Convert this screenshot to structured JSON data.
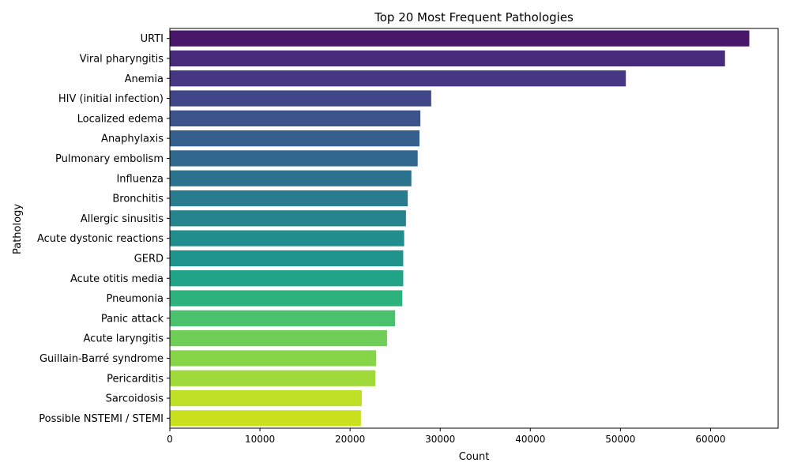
{
  "chart_data": {
    "type": "bar",
    "orientation": "horizontal",
    "title": "Top 20 Most Frequent Pathologies",
    "xlabel": "Count",
    "ylabel": "Pathology",
    "xlim": [
      0,
      67500
    ],
    "xticks": [
      0,
      10000,
      20000,
      30000,
      40000,
      50000,
      60000
    ],
    "xtick_labels": [
      "0",
      "10000",
      "20000",
      "30000",
      "40000",
      "50000",
      "60000"
    ],
    "grid": false,
    "palette": "viridis",
    "categories": [
      "URTI",
      "Viral pharyngitis",
      "Anemia",
      "HIV (initial infection)",
      "Localized edema",
      "Anaphylaxis",
      "Pulmonary embolism",
      "Influenza",
      "Bronchitis",
      "Allergic sinusitis",
      "Acute dystonic reactions",
      "GERD",
      "Acute otitis media",
      "Pneumonia",
      "Panic attack",
      "Acute laryngitis",
      "Guillain-Barré syndrome",
      "Pericarditis",
      "Sarcoidosis",
      "Possible NSTEMI / STEMI"
    ],
    "values": [
      64300,
      61600,
      50600,
      29000,
      27800,
      27700,
      27500,
      26800,
      26400,
      26200,
      26000,
      25900,
      25900,
      25800,
      25000,
      24100,
      22900,
      22800,
      21300,
      21200
    ],
    "colors": [
      "#481769",
      "#472a7a",
      "#453781",
      "#404688",
      "#3b528b",
      "#35608d",
      "#31688e",
      "#2c738e",
      "#297b8e",
      "#25848e",
      "#228d8d",
      "#1f948c",
      "#20a386",
      "#2db27d",
      "#4ac16d",
      "#6ece58",
      "#86d549",
      "#9fda3a",
      "#bddf26",
      "#cae11f"
    ]
  }
}
